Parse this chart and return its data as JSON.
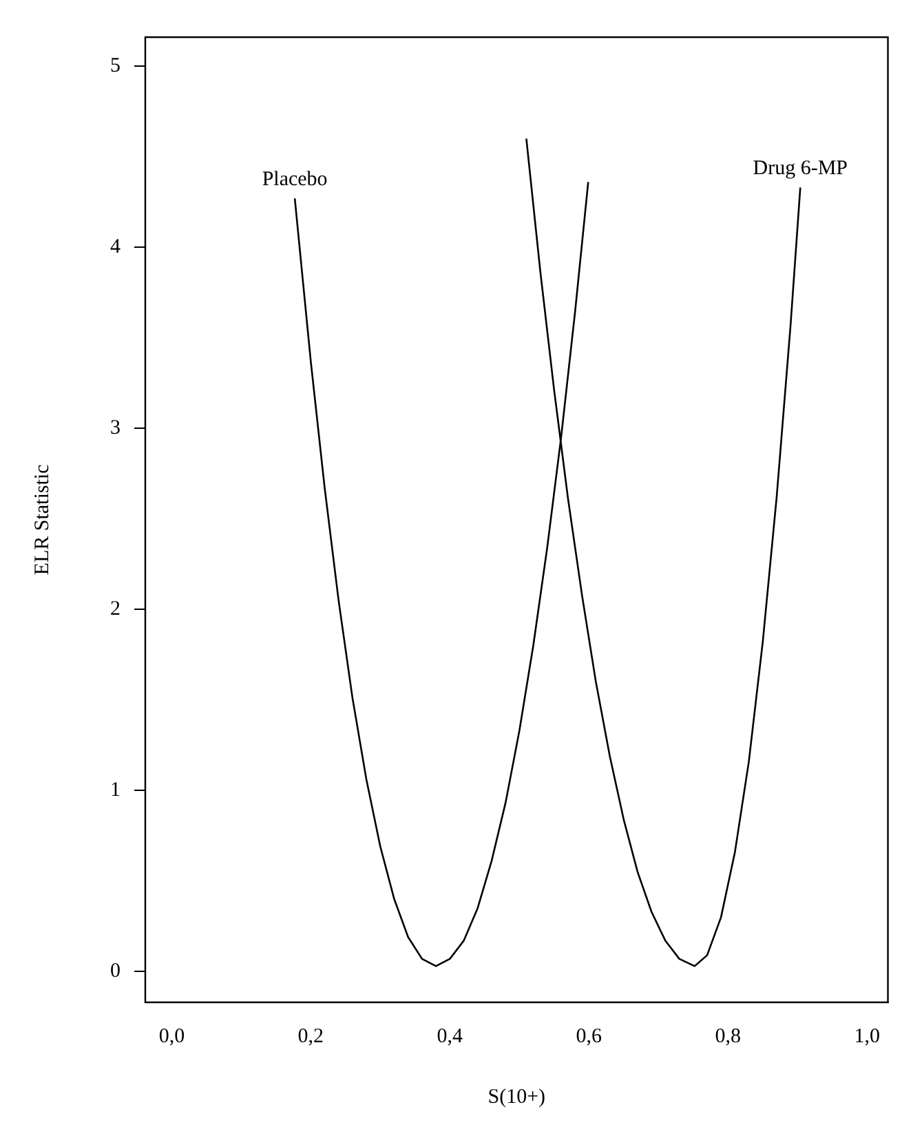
{
  "chart_data": {
    "type": "line",
    "xlabel": "S(10+)",
    "ylabel": "ELR Statistic",
    "xlim": [
      -0.038,
      1.03
    ],
    "ylim": [
      -0.17,
      5.16
    ],
    "xticks": [
      {
        "value": 0,
        "label": "0,0"
      },
      {
        "value": 0.2,
        "label": "0,2"
      },
      {
        "value": 0.4,
        "label": "0,4"
      },
      {
        "value": 0.6,
        "label": "0,6"
      },
      {
        "value": 0.8,
        "label": "0,8"
      },
      {
        "value": 1,
        "label": "1,0"
      }
    ],
    "yticks": [
      0,
      1,
      2,
      3,
      4,
      5
    ],
    "grid": false,
    "legend": false,
    "marker": "none",
    "line_style": "solid",
    "series": [
      {
        "name": "Placebo",
        "color": "#000000",
        "x": [
          0.177,
          0.2,
          0.22,
          0.24,
          0.26,
          0.28,
          0.3,
          0.32,
          0.34,
          0.36,
          0.38,
          0.4,
          0.42,
          0.44,
          0.46,
          0.48,
          0.5,
          0.52,
          0.54,
          0.56,
          0.58,
          0.599
        ],
        "values": [
          4.27,
          3.37,
          2.67,
          2.05,
          1.51,
          1.06,
          0.69,
          0.4,
          0.19,
          0.07,
          0.03,
          0.07,
          0.17,
          0.35,
          0.61,
          0.93,
          1.33,
          1.8,
          2.34,
          2.95,
          3.64,
          4.36
        ]
      },
      {
        "name": "Drug 6-MP",
        "color": "#000000",
        "x": [
          0.51,
          0.53,
          0.55,
          0.57,
          0.59,
          0.61,
          0.63,
          0.65,
          0.67,
          0.69,
          0.71,
          0.73,
          0.752,
          0.77,
          0.79,
          0.81,
          0.83,
          0.85,
          0.87,
          0.89,
          0.904
        ],
        "values": [
          4.6,
          3.87,
          3.21,
          2.61,
          2.08,
          1.6,
          1.19,
          0.84,
          0.55,
          0.33,
          0.17,
          0.07,
          0.03,
          0.09,
          0.3,
          0.66,
          1.16,
          1.82,
          2.62,
          3.57,
          4.33
        ]
      }
    ]
  }
}
